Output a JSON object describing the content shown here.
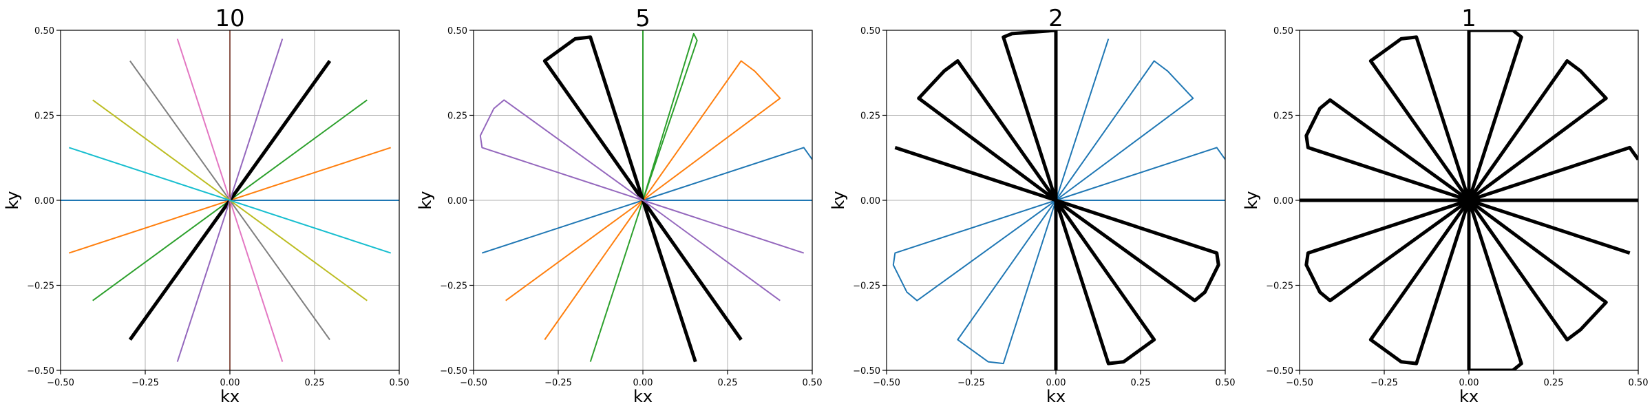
{
  "chart_data": [
    {
      "type": "line",
      "title": "10",
      "xlabel": "kx",
      "ylabel": "ky",
      "xlim": [
        -0.5,
        0.5
      ],
      "ylim": [
        -0.5,
        0.5
      ],
      "xticks": [
        "−0.50",
        "−0.25",
        "0.00",
        "0.25",
        "0.50"
      ],
      "yticks": [
        "−0.50",
        "−0.25",
        "0.00",
        "0.25",
        "0.50"
      ],
      "grid": true,
      "spokes": [
        {
          "color": "#1f77b4",
          "width": 2,
          "points": [
            [
              -0.5,
              0
            ],
            [
              0.5,
              0
            ]
          ]
        },
        {
          "color": "#ff7f0e",
          "width": 2,
          "points": [
            [
              -0.475,
              -0.155
            ],
            [
              0.475,
              0.155
            ]
          ]
        },
        {
          "color": "#2ca02c",
          "width": 2,
          "points": [
            [
              -0.405,
              -0.295
            ],
            [
              0.405,
              0.295
            ]
          ]
        },
        {
          "color": "#000000",
          "width": 5,
          "points": [
            [
              -0.295,
              -0.41
            ],
            [
              0.295,
              0.41
            ]
          ]
        },
        {
          "color": "#9467bd",
          "width": 2,
          "points": [
            [
              -0.155,
              -0.475
            ],
            [
              0.155,
              0.475
            ]
          ]
        },
        {
          "color": "#8c564b",
          "width": 2,
          "points": [
            [
              0,
              -0.5
            ],
            [
              0,
              0.5
            ]
          ]
        },
        {
          "color": "#e377c2",
          "width": 2,
          "points": [
            [
              0.155,
              -0.475
            ],
            [
              -0.155,
              0.475
            ]
          ]
        },
        {
          "color": "#7f7f7f",
          "width": 2,
          "points": [
            [
              0.295,
              -0.41
            ],
            [
              -0.295,
              0.41
            ]
          ]
        },
        {
          "color": "#bcbd22",
          "width": 2,
          "points": [
            [
              0.405,
              -0.295
            ],
            [
              -0.405,
              0.295
            ]
          ]
        },
        {
          "color": "#17becf",
          "width": 2,
          "points": [
            [
              0.475,
              -0.155
            ],
            [
              -0.475,
              0.155
            ]
          ]
        }
      ]
    },
    {
      "type": "line",
      "title": "5",
      "xlabel": "kx",
      "ylabel": "ky",
      "xlim": [
        -0.5,
        0.5
      ],
      "ylim": [
        -0.5,
        0.5
      ],
      "xticks": [
        "−0.50",
        "−0.25",
        "0.00",
        "0.25",
        "0.50"
      ],
      "yticks": [
        "−0.50",
        "−0.25",
        "0.00",
        "0.25",
        "0.50"
      ],
      "grid": true,
      "spokes": [
        {
          "color": "#1f77b4",
          "width": 2,
          "points": [
            [
              0.5,
              0
            ],
            [
              0,
              0
            ],
            [
              0.475,
              0.155
            ],
            [
              0.5,
              0.12
            ]
          ]
        },
        {
          "color": "#1f77b4",
          "width": 2,
          "points": [
            [
              -0.475,
              -0.155
            ],
            [
              0,
              0
            ]
          ]
        },
        {
          "color": "#ff7f0e",
          "width": 2,
          "points": [
            [
              0,
              0
            ],
            [
              0.29,
              0.41
            ],
            [
              0.33,
              0.38
            ],
            [
              0.405,
              0.3
            ],
            [
              0,
              0
            ]
          ]
        },
        {
          "color": "#ff7f0e",
          "width": 2,
          "points": [
            [
              -0.405,
              -0.295
            ],
            [
              0,
              0
            ],
            [
              -0.29,
              -0.41
            ]
          ]
        },
        {
          "color": "#2ca02c",
          "width": 2,
          "points": [
            [
              0,
              0.5
            ],
            [
              0,
              0
            ],
            [
              0.15,
              0.49
            ],
            [
              0.16,
              0.47
            ],
            [
              0,
              0
            ]
          ]
        },
        {
          "color": "#2ca02c",
          "width": 2,
          "points": [
            [
              0,
              0
            ],
            [
              -0.155,
              -0.475
            ]
          ]
        },
        {
          "color": "#000000",
          "width": 5,
          "points": [
            [
              0,
              0
            ],
            [
              -0.29,
              0.41
            ],
            [
              -0.2,
              0.475
            ],
            [
              -0.155,
              0.48
            ],
            [
              0,
              0
            ]
          ]
        },
        {
          "color": "#000000",
          "width": 5,
          "points": [
            [
              0.155,
              -0.475
            ],
            [
              0,
              0
            ],
            [
              0.29,
              -0.41
            ]
          ]
        },
        {
          "color": "#9467bd",
          "width": 2,
          "points": [
            [
              0,
              0
            ],
            [
              -0.475,
              0.155
            ],
            [
              -0.48,
              0.19
            ],
            [
              -0.44,
              0.27
            ],
            [
              -0.41,
              0.295
            ],
            [
              0,
              0
            ]
          ]
        },
        {
          "color": "#9467bd",
          "width": 2,
          "points": [
            [
              0.405,
              -0.295
            ],
            [
              0,
              0
            ],
            [
              0.475,
              -0.155
            ]
          ]
        }
      ]
    },
    {
      "type": "line",
      "title": "2",
      "xlabel": "kx",
      "ylabel": "ky",
      "xlim": [
        -0.5,
        0.5
      ],
      "ylim": [
        -0.5,
        0.5
      ],
      "xticks": [
        "−0.50",
        "−0.25",
        "0.00",
        "0.25",
        "0.50"
      ],
      "yticks": [
        "−0.50",
        "−0.25",
        "0.00",
        "0.25",
        "0.50"
      ],
      "grid": true,
      "spokes": [
        {
          "color": "#1f77b4",
          "width": 2,
          "points": [
            [
              0.5,
              0
            ],
            [
              0,
              0
            ],
            [
              0.475,
              0.155
            ],
            [
              0.5,
              0.12
            ]
          ]
        },
        {
          "color": "#1f77b4",
          "width": 2,
          "points": [
            [
              0,
              0
            ],
            [
              0.29,
              0.41
            ],
            [
              0.33,
              0.38
            ],
            [
              0.405,
              0.3
            ],
            [
              0,
              0
            ]
          ]
        },
        {
          "color": "#1f77b4",
          "width": 2,
          "points": [
            [
              0,
              0
            ],
            [
              0.155,
              0.475
            ]
          ]
        },
        {
          "color": "#1f77b4",
          "width": 2,
          "points": [
            [
              0,
              0
            ],
            [
              -0.475,
              -0.155
            ],
            [
              -0.48,
              -0.19
            ],
            [
              -0.44,
              -0.27
            ],
            [
              -0.41,
              -0.295
            ],
            [
              0,
              0
            ]
          ]
        },
        {
          "color": "#1f77b4",
          "width": 2,
          "points": [
            [
              0,
              0
            ],
            [
              -0.29,
              -0.41
            ],
            [
              -0.2,
              -0.475
            ],
            [
              -0.155,
              -0.48
            ],
            [
              0,
              0
            ]
          ]
        },
        {
          "color": "#000000",
          "width": 5,
          "points": [
            [
              0,
              0.5
            ],
            [
              0,
              -0.5
            ]
          ]
        },
        {
          "color": "#000000",
          "width": 5,
          "points": [
            [
              0,
              0
            ],
            [
              -0.155,
              0.48
            ],
            [
              -0.13,
              0.49
            ],
            [
              0.0,
              0.5
            ]
          ]
        },
        {
          "color": "#000000",
          "width": 5,
          "points": [
            [
              0,
              0
            ],
            [
              -0.29,
              0.41
            ],
            [
              -0.33,
              0.38
            ],
            [
              -0.405,
              0.3
            ],
            [
              0,
              0
            ]
          ]
        },
        {
          "color": "#000000",
          "width": 5,
          "points": [
            [
              0,
              0
            ],
            [
              -0.475,
              0.155
            ]
          ]
        },
        {
          "color": "#000000",
          "width": 5,
          "points": [
            [
              0,
              0
            ],
            [
              0.475,
              -0.155
            ],
            [
              0.48,
              -0.19
            ],
            [
              0.44,
              -0.27
            ],
            [
              0.41,
              -0.295
            ],
            [
              0,
              0
            ]
          ]
        },
        {
          "color": "#000000",
          "width": 5,
          "points": [
            [
              0,
              0
            ],
            [
              0.29,
              -0.41
            ],
            [
              0.2,
              -0.475
            ],
            [
              0.155,
              -0.48
            ],
            [
              0,
              0
            ]
          ]
        }
      ]
    },
    {
      "type": "line",
      "title": "1",
      "xlabel": "kx",
      "ylabel": "ky",
      "xlim": [
        -0.5,
        0.5
      ],
      "ylim": [
        -0.5,
        0.5
      ],
      "xticks": [
        "−0.50",
        "−0.25",
        "0.00",
        "0.25",
        "0.50"
      ],
      "yticks": [
        "−0.50",
        "−0.25",
        "0.00",
        "0.25",
        "0.50"
      ],
      "grid": true,
      "spokes": [
        {
          "color": "#000000",
          "width": 5,
          "points": [
            [
              -0.5,
              0
            ],
            [
              0.5,
              0
            ]
          ]
        },
        {
          "color": "#000000",
          "width": 5,
          "points": [
            [
              0,
              -0.5
            ],
            [
              0,
              0.5
            ]
          ]
        },
        {
          "color": "#000000",
          "width": 5,
          "points": [
            [
              0,
              0
            ],
            [
              0.155,
              0.48
            ],
            [
              0.13,
              0.5
            ],
            [
              0.0,
              0.5
            ]
          ]
        },
        {
          "color": "#000000",
          "width": 5,
          "points": [
            [
              0,
              0
            ],
            [
              0.29,
              0.41
            ],
            [
              0.33,
              0.38
            ],
            [
              0.405,
              0.3
            ],
            [
              0,
              0
            ]
          ]
        },
        {
          "color": "#000000",
          "width": 5,
          "points": [
            [
              0,
              0
            ],
            [
              0.475,
              0.155
            ],
            [
              0.5,
              0.12
            ]
          ]
        },
        {
          "color": "#000000",
          "width": 5,
          "points": [
            [
              0,
              0
            ],
            [
              -0.155,
              0.48
            ],
            [
              -0.2,
              0.475
            ],
            [
              -0.29,
              0.41
            ],
            [
              0,
              0
            ]
          ]
        },
        {
          "color": "#000000",
          "width": 5,
          "points": [
            [
              0,
              0
            ],
            [
              -0.41,
              0.295
            ],
            [
              -0.44,
              0.27
            ],
            [
              -0.48,
              0.19
            ],
            [
              -0.475,
              0.155
            ],
            [
              0,
              0
            ]
          ]
        },
        {
          "color": "#000000",
          "width": 5,
          "points": [
            [
              0,
              0
            ],
            [
              -0.475,
              -0.155
            ],
            [
              -0.48,
              -0.19
            ],
            [
              -0.44,
              -0.27
            ],
            [
              -0.41,
              -0.295
            ],
            [
              0,
              0
            ]
          ]
        },
        {
          "color": "#000000",
          "width": 5,
          "points": [
            [
              0,
              0
            ],
            [
              -0.29,
              -0.41
            ],
            [
              -0.2,
              -0.475
            ],
            [
              -0.155,
              -0.48
            ],
            [
              0,
              0
            ]
          ]
        },
        {
          "color": "#000000",
          "width": 5,
          "points": [
            [
              0,
              0
            ],
            [
              0.155,
              -0.48
            ],
            [
              0.13,
              -0.5
            ],
            [
              0.0,
              -0.5
            ]
          ]
        },
        {
          "color": "#000000",
          "width": 5,
          "points": [
            [
              0,
              0
            ],
            [
              0.29,
              -0.41
            ],
            [
              0.33,
              -0.38
            ],
            [
              0.405,
              -0.3
            ],
            [
              0,
              0
            ]
          ]
        },
        {
          "color": "#000000",
          "width": 5,
          "points": [
            [
              0,
              0
            ],
            [
              0.475,
              -0.155
            ]
          ]
        }
      ]
    }
  ]
}
